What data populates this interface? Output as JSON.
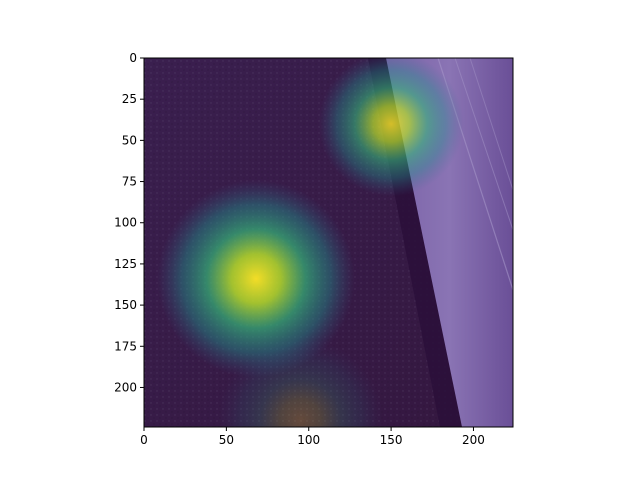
{
  "chart_data": {
    "type": "heatmap",
    "title": "",
    "xlabel": "",
    "ylabel": "",
    "image_size": [
      224,
      224
    ],
    "xlim": [
      0,
      224
    ],
    "ylim": [
      224,
      0
    ],
    "y_axis_inverted": true,
    "xticks": [
      0,
      50,
      100,
      150,
      200
    ],
    "yticks": [
      0,
      25,
      50,
      75,
      100,
      125,
      150,
      175,
      200
    ],
    "colormap": "viridis",
    "grid": false,
    "legend": "none",
    "background_description": "aerial image of water surface with a diagonal pier/road on the right",
    "hotspots": [
      {
        "x": 68,
        "y": 134,
        "intensity": 1.0,
        "radius": 30
      },
      {
        "x": 150,
        "y": 40,
        "intensity": 0.85,
        "radius": 22
      },
      {
        "x": 95,
        "y": 220,
        "intensity": 0.25,
        "radius": 25
      }
    ],
    "colors": {
      "low": "#440154",
      "mid": "#21918c",
      "high": "#fde725"
    }
  }
}
